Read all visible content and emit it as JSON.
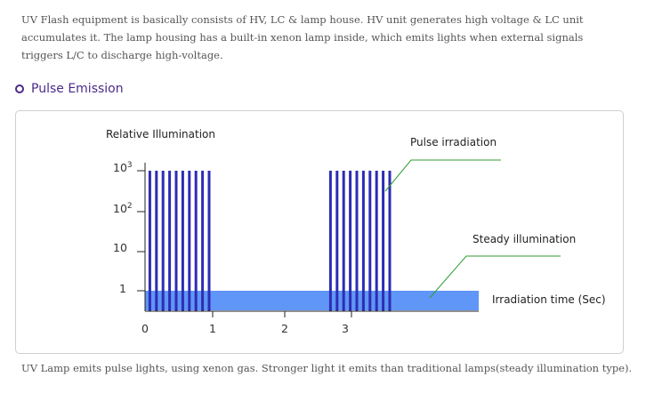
{
  "intro_text": "UV Flash equipment is basically consists of HV, LC & lamp house. HV unit generates high voltage & LC unit accumulates it. The lamp housing has a built-in xenon lamp inside, which emits lights when external signals triggers L/C to discharge high-voltage.",
  "section": {
    "title": "Pulse Emission"
  },
  "figure": {
    "y_axis_label": "Relative Illumination",
    "y_ticks": [
      {
        "base": "10",
        "exp": "3"
      },
      {
        "base": "10",
        "exp": "2"
      },
      {
        "base": "10",
        "exp": ""
      },
      {
        "base": "1",
        "exp": ""
      }
    ],
    "x_ticks": [
      "0",
      "1",
      "2",
      "3"
    ],
    "annotations": {
      "pulse": "Pulse irradiation",
      "steady": "Steady illumination",
      "time": "Irradiation time (Sec)"
    },
    "pulse_groups": [
      {
        "start_sec": 0.05,
        "pulses": 10
      },
      {
        "start_sec": 2.67,
        "pulses": 10
      }
    ],
    "steady_level": "1",
    "colors": {
      "pulse": "#2d2db3",
      "steady": "#5f96f7",
      "accent": "#4b2a8c",
      "leader": "#2f9e2f"
    }
  },
  "caption": "UV Lamp emits pulse lights, using xenon gas. Stronger light it emits than traditional lamps(steady illumination type)."
}
